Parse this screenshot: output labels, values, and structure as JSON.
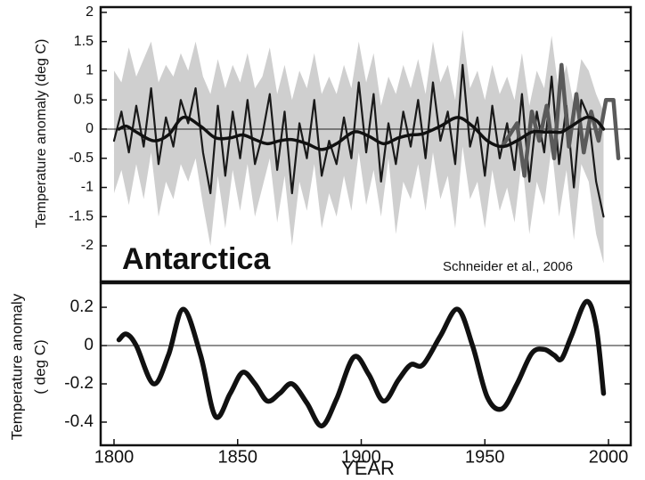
{
  "chart_data": [
    {
      "type": "line",
      "ylabel": "Temperature anomaly (deg C)",
      "annotations": [
        "Antarctica",
        "Schneider et al., 2006"
      ],
      "xlim": [
        1794.6,
        2009
      ],
      "ylim": [
        -2.61,
        2.09
      ],
      "yticks": [
        2,
        1.5,
        1,
        0.5,
        0,
        -0.5,
        -1,
        -1.5,
        -2
      ],
      "series": [
        {
          "color": "#1a1a1a",
          "band_color": "#cfcfcf",
          "x": [
            1800,
            1803,
            1806,
            1809,
            1812,
            1815,
            1818,
            1821,
            1824,
            1827,
            1830,
            1833,
            1836,
            1839,
            1842,
            1845,
            1848,
            1851,
            1854,
            1857,
            1860,
            1863,
            1866,
            1869,
            1872,
            1875,
            1878,
            1881,
            1884,
            1887,
            1890,
            1893,
            1896,
            1899,
            1902,
            1905,
            1908,
            1911,
            1914,
            1917,
            1920,
            1923,
            1926,
            1929,
            1932,
            1935,
            1938,
            1941,
            1944,
            1947,
            1950,
            1953,
            1956,
            1959,
            1962,
            1965,
            1968,
            1971,
            1974,
            1977,
            1980,
            1983,
            1986,
            1989,
            1992,
            1995,
            1998
          ],
          "values": [
            -0.2,
            0.3,
            -0.4,
            0.4,
            -0.3,
            0.7,
            -0.6,
            0.2,
            -0.3,
            0.5,
            0.1,
            0.7,
            -0.4,
            -1.1,
            0.4,
            -0.8,
            0.3,
            -0.5,
            0.5,
            -0.6,
            -0.1,
            0.6,
            -0.7,
            0.3,
            -1.1,
            0.1,
            -0.5,
            0.5,
            -0.8,
            -0.2,
            -0.6,
            0.2,
            -0.5,
            0.8,
            -0.4,
            0.6,
            -0.9,
            0.1,
            -0.6,
            0.3,
            -0.3,
            0.5,
            -0.5,
            0.8,
            -0.2,
            0.3,
            -0.6,
            1.1,
            -0.3,
            0.2,
            -0.8,
            0.4,
            -0.5,
            0.1,
            -0.7,
            0.6,
            -0.9,
            0.3,
            -0.4,
            0.9,
            -0.6,
            0.4,
            -1.0,
            0.5,
            0.2,
            -0.9,
            -1.5
          ],
          "band_upper": [
            1.0,
            0.8,
            1.4,
            0.9,
            1.2,
            1.5,
            0.8,
            1.1,
            0.9,
            1.3,
            1.0,
            1.5,
            0.9,
            0.6,
            1.2,
            0.7,
            1.1,
            0.8,
            1.3,
            0.7,
            0.9,
            1.4,
            0.6,
            1.1,
            0.5,
            1.0,
            0.7,
            1.3,
            0.6,
            0.9,
            0.6,
            1.1,
            0.7,
            1.5,
            0.8,
            1.3,
            0.4,
            0.9,
            0.6,
            1.1,
            0.7,
            1.2,
            0.6,
            1.5,
            0.8,
            1.1,
            0.5,
            1.7,
            0.7,
            1.0,
            0.5,
            1.1,
            0.6,
            0.9,
            0.5,
            1.3,
            0.4,
            1.0,
            0.7,
            1.6,
            0.6,
            1.1,
            0.4,
            1.2,
            1.0,
            0.6,
            0.3
          ],
          "band_lower": [
            -1.1,
            -0.7,
            -1.3,
            -0.6,
            -1.2,
            -0.4,
            -1.5,
            -0.9,
            -1.2,
            -0.6,
            -0.9,
            -0.5,
            -1.3,
            -2.0,
            -0.8,
            -1.7,
            -0.7,
            -1.4,
            -0.6,
            -1.5,
            -1.0,
            -0.5,
            -1.6,
            -0.8,
            -2.0,
            -0.9,
            -1.4,
            -0.6,
            -1.7,
            -1.1,
            -1.5,
            -0.8,
            -1.4,
            -0.4,
            -1.3,
            -0.7,
            -1.5,
            -0.5,
            -1.8,
            -0.9,
            -1.2,
            -0.6,
            -1.4,
            -0.4,
            -1.2,
            -0.8,
            -1.7,
            -0.3,
            -1.2,
            -0.9,
            -1.7,
            -0.7,
            -1.4,
            -1.0,
            -1.6,
            -0.5,
            -1.8,
            -0.9,
            -1.3,
            -0.3,
            -1.5,
            -0.7,
            -1.9,
            -0.6,
            -0.9,
            -1.8,
            -2.3
          ]
        },
        {
          "color": "#5a5a5a",
          "x": [
            1957,
            1960,
            1963,
            1966,
            1969,
            1972,
            1975,
            1978,
            1981,
            1984,
            1987,
            1990,
            1993,
            1996,
            1999,
            2002,
            2004
          ],
          "values": [
            -0.3,
            -0.1,
            0.1,
            -0.8,
            0.3,
            -0.2,
            0.4,
            -0.5,
            1.1,
            -0.3,
            0.6,
            -0.4,
            0.3,
            -0.2,
            0.5,
            0.5,
            -0.5
          ]
        },
        {
          "color": "#111111",
          "smooth": true,
          "x": [
            1802,
            1805,
            1809,
            1816,
            1822,
            1828,
            1835,
            1841,
            1847,
            1852,
            1857,
            1862,
            1867,
            1872,
            1878,
            1884,
            1890,
            1897,
            1903,
            1909,
            1915,
            1920,
            1925,
            1932,
            1939,
            1945,
            1951,
            1957,
            1963,
            1969,
            1974,
            1978,
            1981,
            1985,
            1991,
            1995,
            1998
          ],
          "values": [
            0.0,
            0.05,
            -0.05,
            -0.2,
            -0.1,
            0.2,
            0.05,
            -0.15,
            -0.15,
            -0.1,
            -0.18,
            -0.25,
            -0.2,
            -0.18,
            -0.25,
            -0.35,
            -0.25,
            -0.05,
            -0.12,
            -0.25,
            -0.15,
            -0.1,
            -0.08,
            0.05,
            0.2,
            0.05,
            -0.2,
            -0.3,
            -0.2,
            -0.05,
            -0.05,
            -0.05,
            -0.05,
            0.05,
            0.2,
            0.15,
            0.0
          ]
        }
      ]
    },
    {
      "type": "line",
      "ylabel": [
        "Temperature anomaly",
        "( deg C)"
      ],
      "xlabel": "YEAR",
      "xlim": [
        1794.6,
        2009
      ],
      "xticks": [
        1800,
        1850,
        1900,
        1950,
        2000
      ],
      "ylim": [
        -0.521,
        0.326
      ],
      "yticks": [
        0.2,
        0,
        -0.2,
        -0.4
      ],
      "series": [
        {
          "color": "#111111",
          "smooth": true,
          "x": [
            1802,
            1805,
            1809,
            1816,
            1822,
            1828,
            1835,
            1841,
            1847,
            1852,
            1857,
            1862,
            1867,
            1872,
            1878,
            1884,
            1890,
            1897,
            1903,
            1909,
            1915,
            1920,
            1925,
            1932,
            1939,
            1945,
            1951,
            1957,
            1963,
            1969,
            1974,
            1978,
            1981,
            1985,
            1991,
            1995,
            1998
          ],
          "values": [
            0.03,
            0.06,
            0.0,
            -0.2,
            -0.05,
            0.19,
            -0.05,
            -0.37,
            -0.25,
            -0.14,
            -0.2,
            -0.29,
            -0.25,
            -0.2,
            -0.3,
            -0.42,
            -0.28,
            -0.06,
            -0.15,
            -0.29,
            -0.18,
            -0.1,
            -0.1,
            0.05,
            0.19,
            0.0,
            -0.27,
            -0.33,
            -0.2,
            -0.04,
            -0.02,
            -0.05,
            -0.07,
            0.05,
            0.23,
            0.1,
            -0.25
          ]
        }
      ]
    }
  ]
}
